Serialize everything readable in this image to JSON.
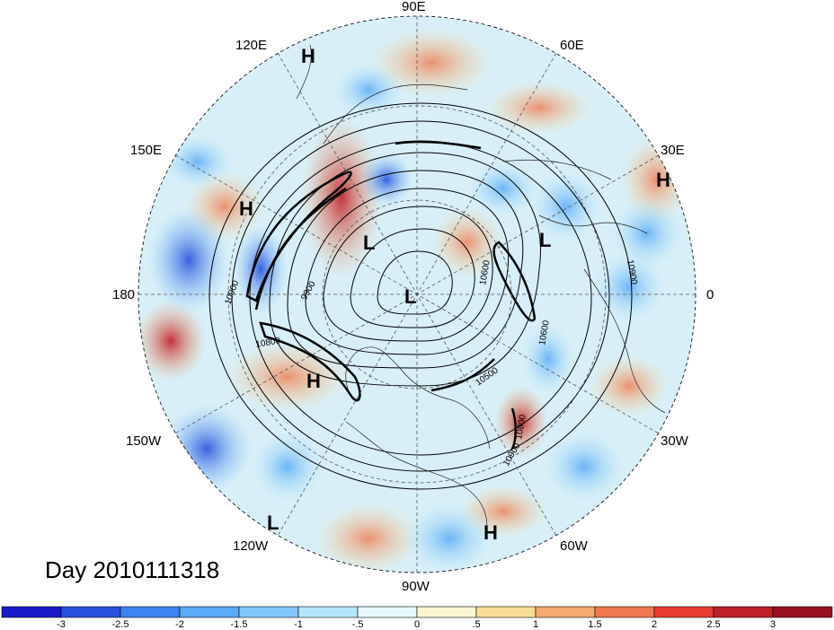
{
  "title": "Day 2010111318",
  "longitude_labels": [
    "90E",
    "60E",
    "30E",
    "0",
    "30W",
    "60W",
    "90W",
    "120W",
    "150W",
    "180",
    "150E",
    "120E"
  ],
  "pressure_centers": [
    {
      "type": "H",
      "region": "East Siberia"
    },
    {
      "type": "H",
      "region": "West Pacific"
    },
    {
      "type": "L",
      "region": "Kara Sea"
    },
    {
      "type": "L",
      "region": "Arctic Ocean"
    },
    {
      "type": "L",
      "region": "Scandinavia"
    },
    {
      "type": "H",
      "region": "Middle East"
    },
    {
      "type": "H",
      "region": "Northeast Pacific"
    },
    {
      "type": "L",
      "region": "East Pacific"
    },
    {
      "type": "H",
      "region": "Caribbean"
    }
  ],
  "contour_labels": [
    "10900",
    "10800",
    "9900",
    "10600",
    "10500",
    "10900",
    "10800",
    "10900",
    "10600"
  ],
  "colorbar": {
    "ticks": [
      "-3",
      "-2.5",
      "-2",
      "-1.5",
      "-1",
      "-.5",
      "0",
      ".5",
      "1",
      "1.5",
      "2",
      "2.5",
      "3"
    ],
    "colors": [
      "#1a1ac8",
      "#2850dc",
      "#3c82f0",
      "#5aaaf5",
      "#82c8fa",
      "#b4e6fc",
      "#e6f8fc",
      "#fcf5d2",
      "#fadc96",
      "#f5aa6e",
      "#f07850",
      "#e63c32",
      "#be1e28",
      "#961020"
    ]
  }
}
